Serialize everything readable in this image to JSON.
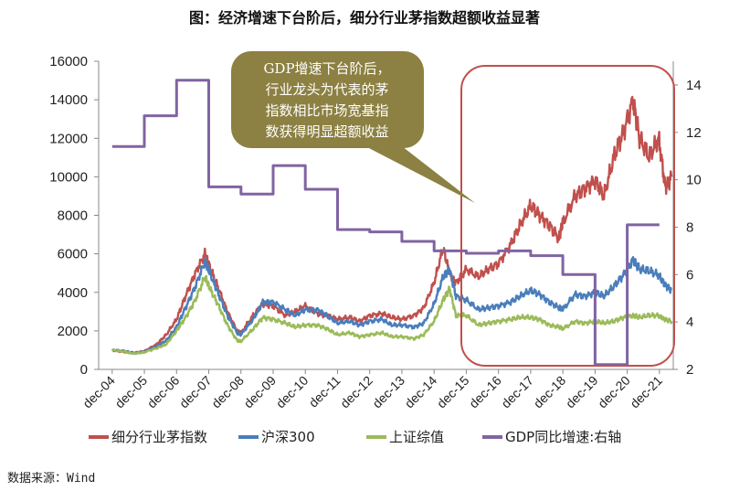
{
  "chart_data": {
    "type": "line",
    "title": "图：经济增速下台阶后，细分行业茅指数超额收益显著",
    "x_ticks": [
      "dec-04",
      "dec-05",
      "dec-06",
      "dec-07",
      "dec-08",
      "dec-09",
      "dec-10",
      "dec-11",
      "dec-12",
      "dec-13",
      "dec-14",
      "dec-15",
      "dec-16",
      "dec-17",
      "dec-18",
      "dec-19",
      "dec-20",
      "dec-21"
    ],
    "y_left": {
      "ticks": [
        "0",
        "2000",
        "4000",
        "6000",
        "8000",
        "10000",
        "12000",
        "14000",
        "16000"
      ],
      "lim": [
        0,
        16000
      ]
    },
    "y_right": {
      "ticks": [
        "2",
        "4",
        "6",
        "8",
        "10",
        "12",
        "14"
      ],
      "lim": [
        2,
        15
      ]
    },
    "series": [
      {
        "name": "细分行业茅指数",
        "color": "#c0504d",
        "axis": "left",
        "points": [
          [
            2004.92,
            1000
          ],
          [
            2005.3,
            900
          ],
          [
            2005.6,
            850
          ],
          [
            2005.92,
            950
          ],
          [
            2006.3,
            1300
          ],
          [
            2006.6,
            1800
          ],
          [
            2006.92,
            2600
          ],
          [
            2007.2,
            3800
          ],
          [
            2007.5,
            5000
          ],
          [
            2007.8,
            6000
          ],
          [
            2007.95,
            5300
          ],
          [
            2008.2,
            4300
          ],
          [
            2008.5,
            3000
          ],
          [
            2008.8,
            2000
          ],
          [
            2008.92,
            1900
          ],
          [
            2009.3,
            2800
          ],
          [
            2009.6,
            3400
          ],
          [
            2009.92,
            3300
          ],
          [
            2010.3,
            2800
          ],
          [
            2010.6,
            3000
          ],
          [
            2010.92,
            3300
          ],
          [
            2011.3,
            2900
          ],
          [
            2011.6,
            2800
          ],
          [
            2011.92,
            2600
          ],
          [
            2012.3,
            2700
          ],
          [
            2012.6,
            2500
          ],
          [
            2012.92,
            2800
          ],
          [
            2013.3,
            2900
          ],
          [
            2013.6,
            2700
          ],
          [
            2013.92,
            2600
          ],
          [
            2014.3,
            2800
          ],
          [
            2014.6,
            3200
          ],
          [
            2014.92,
            4500
          ],
          [
            2015.2,
            6300
          ],
          [
            2015.4,
            5000
          ],
          [
            2015.6,
            4500
          ],
          [
            2015.92,
            5200
          ],
          [
            2016.3,
            4800
          ],
          [
            2016.6,
            5200
          ],
          [
            2016.92,
            5500
          ],
          [
            2017.3,
            6500
          ],
          [
            2017.6,
            7500
          ],
          [
            2017.92,
            8500
          ],
          [
            2018.2,
            8000
          ],
          [
            2018.5,
            7500
          ],
          [
            2018.8,
            6800
          ],
          [
            2018.92,
            7600
          ],
          [
            2019.3,
            9000
          ],
          [
            2019.6,
            9400
          ],
          [
            2019.92,
            9800
          ],
          [
            2020.2,
            9000
          ],
          [
            2020.5,
            11000
          ],
          [
            2020.8,
            12300
          ],
          [
            2021.1,
            14000
          ],
          [
            2021.3,
            12000
          ],
          [
            2021.6,
            11000
          ],
          [
            2021.9,
            12000
          ],
          [
            2022.1,
            9500
          ],
          [
            2022.3,
            10000
          ]
        ]
      },
      {
        "name": "沪深300",
        "color": "#4a7ebb",
        "axis": "left",
        "points": [
          [
            2004.92,
            1000
          ],
          [
            2005.3,
            950
          ],
          [
            2005.6,
            850
          ],
          [
            2005.92,
            920
          ],
          [
            2006.3,
            1200
          ],
          [
            2006.6,
            1500
          ],
          [
            2006.92,
            2200
          ],
          [
            2007.2,
            3200
          ],
          [
            2007.5,
            4300
          ],
          [
            2007.8,
            5600
          ],
          [
            2007.95,
            5000
          ],
          [
            2008.2,
            4000
          ],
          [
            2008.5,
            2800
          ],
          [
            2008.8,
            1900
          ],
          [
            2008.92,
            1800
          ],
          [
            2009.3,
            2600
          ],
          [
            2009.6,
            3500
          ],
          [
            2009.92,
            3500
          ],
          [
            2010.3,
            3100
          ],
          [
            2010.6,
            2800
          ],
          [
            2010.92,
            3100
          ],
          [
            2011.3,
            3100
          ],
          [
            2011.6,
            2800
          ],
          [
            2011.92,
            2400
          ],
          [
            2012.3,
            2500
          ],
          [
            2012.6,
            2300
          ],
          [
            2012.92,
            2500
          ],
          [
            2013.3,
            2600
          ],
          [
            2013.6,
            2300
          ],
          [
            2013.92,
            2300
          ],
          [
            2014.3,
            2200
          ],
          [
            2014.6,
            2400
          ],
          [
            2014.92,
            3400
          ],
          [
            2015.2,
            4800
          ],
          [
            2015.4,
            5200
          ],
          [
            2015.6,
            3800
          ],
          [
            2015.92,
            3600
          ],
          [
            2016.3,
            3100
          ],
          [
            2016.6,
            3200
          ],
          [
            2016.92,
            3300
          ],
          [
            2017.3,
            3500
          ],
          [
            2017.6,
            3800
          ],
          [
            2017.92,
            4100
          ],
          [
            2018.2,
            3900
          ],
          [
            2018.5,
            3500
          ],
          [
            2018.8,
            3200
          ],
          [
            2018.92,
            3100
          ],
          [
            2019.3,
            3900
          ],
          [
            2019.6,
            3800
          ],
          [
            2019.92,
            4000
          ],
          [
            2020.2,
            3800
          ],
          [
            2020.5,
            4300
          ],
          [
            2020.8,
            4900
          ],
          [
            2021.1,
            5700
          ],
          [
            2021.3,
            5200
          ],
          [
            2021.6,
            5100
          ],
          [
            2021.9,
            4900
          ],
          [
            2022.1,
            4400
          ],
          [
            2022.3,
            4100
          ]
        ]
      },
      {
        "name": "上证综值",
        "color": "#9bbb59",
        "axis": "left",
        "points": [
          [
            2004.92,
            1000
          ],
          [
            2005.3,
            920
          ],
          [
            2005.6,
            820
          ],
          [
            2005.92,
            900
          ],
          [
            2006.3,
            1100
          ],
          [
            2006.6,
            1300
          ],
          [
            2006.92,
            2000
          ],
          [
            2007.2,
            2700
          ],
          [
            2007.5,
            3600
          ],
          [
            2007.8,
            4800
          ],
          [
            2007.95,
            4200
          ],
          [
            2008.2,
            3400
          ],
          [
            2008.5,
            2300
          ],
          [
            2008.8,
            1500
          ],
          [
            2008.92,
            1450
          ],
          [
            2009.3,
            2100
          ],
          [
            2009.6,
            2700
          ],
          [
            2009.92,
            2600
          ],
          [
            2010.3,
            2400
          ],
          [
            2010.6,
            2200
          ],
          [
            2010.92,
            2300
          ],
          [
            2011.3,
            2300
          ],
          [
            2011.6,
            2100
          ],
          [
            2011.92,
            1800
          ],
          [
            2012.3,
            1900
          ],
          [
            2012.6,
            1700
          ],
          [
            2012.92,
            1800
          ],
          [
            2013.3,
            1900
          ],
          [
            2013.6,
            1700
          ],
          [
            2013.92,
            1700
          ],
          [
            2014.3,
            1600
          ],
          [
            2014.6,
            1800
          ],
          [
            2014.92,
            2500
          ],
          [
            2015.2,
            3600
          ],
          [
            2015.4,
            4200
          ],
          [
            2015.6,
            2800
          ],
          [
            2015.92,
            2800
          ],
          [
            2016.3,
            2300
          ],
          [
            2016.6,
            2400
          ],
          [
            2016.92,
            2500
          ],
          [
            2017.3,
            2600
          ],
          [
            2017.6,
            2700
          ],
          [
            2017.92,
            2700
          ],
          [
            2018.2,
            2600
          ],
          [
            2018.5,
            2300
          ],
          [
            2018.8,
            2200
          ],
          [
            2018.92,
            2100
          ],
          [
            2019.3,
            2500
          ],
          [
            2019.6,
            2400
          ],
          [
            2019.92,
            2500
          ],
          [
            2020.2,
            2400
          ],
          [
            2020.5,
            2500
          ],
          [
            2020.8,
            2700
          ],
          [
            2021.1,
            2800
          ],
          [
            2021.3,
            2700
          ],
          [
            2021.6,
            2800
          ],
          [
            2021.9,
            2800
          ],
          [
            2022.1,
            2600
          ],
          [
            2022.3,
            2500
          ]
        ]
      },
      {
        "name": "GDP同比增速:右轴",
        "color": "#8064a2",
        "axis": "right",
        "step": true,
        "points": [
          [
            2004.92,
            11.4
          ],
          [
            2005.92,
            11.4
          ],
          [
            2005.92,
            12.7
          ],
          [
            2006.92,
            12.7
          ],
          [
            2006.92,
            14.2
          ],
          [
            2007.92,
            14.2
          ],
          [
            2007.92,
            9.7
          ],
          [
            2008.92,
            9.7
          ],
          [
            2008.92,
            9.4
          ],
          [
            2009.92,
            9.4
          ],
          [
            2009.92,
            10.6
          ],
          [
            2010.92,
            10.6
          ],
          [
            2010.92,
            9.6
          ],
          [
            2011.92,
            9.6
          ],
          [
            2011.92,
            7.9
          ],
          [
            2012.92,
            7.9
          ],
          [
            2012.92,
            7.8
          ],
          [
            2013.92,
            7.8
          ],
          [
            2013.92,
            7.4
          ],
          [
            2014.92,
            7.4
          ],
          [
            2014.92,
            7.0
          ],
          [
            2015.92,
            7.0
          ],
          [
            2015.92,
            6.9
          ],
          [
            2016.92,
            6.9
          ],
          [
            2016.92,
            7.0
          ],
          [
            2017.92,
            7.0
          ],
          [
            2017.92,
            6.8
          ],
          [
            2018.92,
            6.8
          ],
          [
            2018.92,
            6.0
          ],
          [
            2019.92,
            6.0
          ],
          [
            2019.92,
            2.2
          ],
          [
            2020.92,
            2.2
          ],
          [
            2020.92,
            8.1
          ],
          [
            2021.92,
            8.1
          ]
        ]
      }
    ],
    "annotation": {
      "lines": [
        "GDP增速下台阶后，",
        "行业龙头为代表的茅",
        "指数相比市场宽基指",
        "数获得明显超额收益"
      ]
    },
    "legend": {
      "position": "bottom"
    },
    "grid": false
  },
  "source_label": "数据来源：Wind"
}
